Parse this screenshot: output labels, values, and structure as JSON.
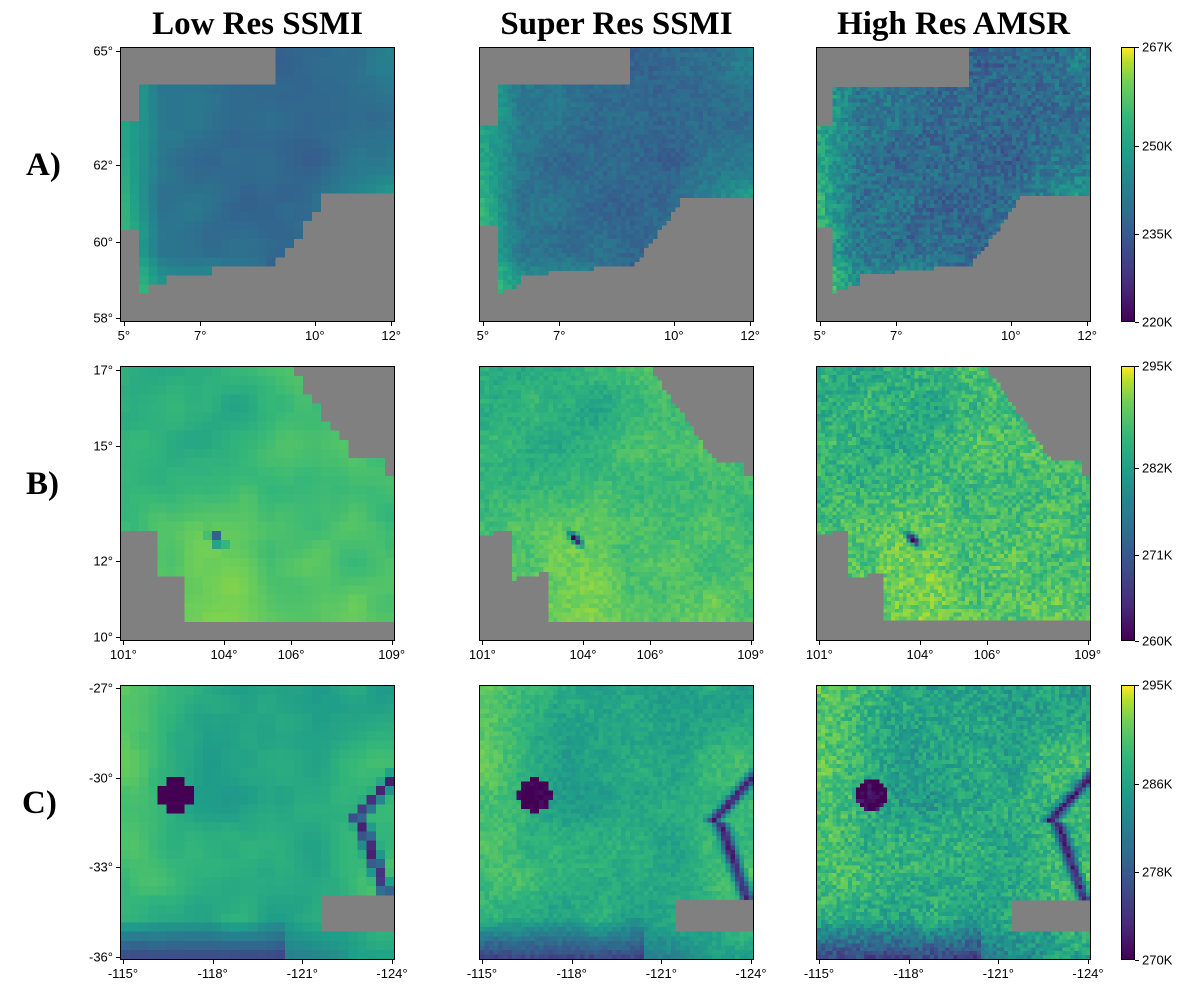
{
  "columns": [
    "Low Res SSMI",
    "Super Res SSMI",
    "High Res AMSR"
  ],
  "rows": [
    {
      "label": "A)",
      "x_ticks": [
        "5°",
        "7°",
        "10°",
        "12°"
      ],
      "x_values": [
        5,
        7,
        10,
        12
      ],
      "xlim": [
        4.9,
        12.1
      ],
      "y_ticks": [
        "65°",
        "62°",
        "60°",
        "58°"
      ],
      "y_values": [
        65,
        62,
        60,
        58
      ],
      "ylim": [
        57.9,
        65.1
      ],
      "colorbar_ticks": [
        "267K",
        "250K",
        "235K",
        "220K"
      ],
      "colorbar_values": [
        267,
        250,
        235,
        220
      ],
      "colorbar_range": [
        220,
        267
      ]
    },
    {
      "label": "B)",
      "x_ticks": [
        "101°",
        "104°",
        "106°",
        "109°"
      ],
      "x_values": [
        101,
        104,
        106,
        109
      ],
      "xlim": [
        100.9,
        109.1
      ],
      "y_ticks": [
        "17°",
        "15°",
        "12°",
        "10°"
      ],
      "y_values": [
        17,
        15,
        12,
        10
      ],
      "ylim": [
        9.9,
        17.1
      ],
      "colorbar_ticks": [
        "295K",
        "282K",
        "271K",
        "260K"
      ],
      "colorbar_values": [
        295,
        282,
        271,
        260
      ],
      "colorbar_range": [
        260,
        295
      ]
    },
    {
      "label": "C)",
      "x_ticks": [
        "-115°",
        "-118°",
        "-121°",
        "-124°"
      ],
      "x_values": [
        -115,
        -118,
        -121,
        -124
      ],
      "xlim": [
        -114.9,
        -124.1
      ],
      "y_ticks": [
        "-27°",
        "-30°",
        "-33°",
        "-36°"
      ],
      "y_values": [
        -27,
        -30,
        -33,
        -36
      ],
      "ylim": [
        -36.1,
        -26.9
      ],
      "colorbar_ticks": [
        "295K",
        "286K",
        "278K",
        "270K"
      ],
      "colorbar_values": [
        295,
        286,
        278,
        270
      ],
      "colorbar_range": [
        270,
        295
      ]
    }
  ],
  "chart_data": {
    "type": "heatmap",
    "colormap": "viridis",
    "nodata_color": "#808080",
    "colorbar_colors": [
      "#440154",
      "#3e4a89",
      "#26828e",
      "#35b779",
      "#fde725"
    ]
  }
}
